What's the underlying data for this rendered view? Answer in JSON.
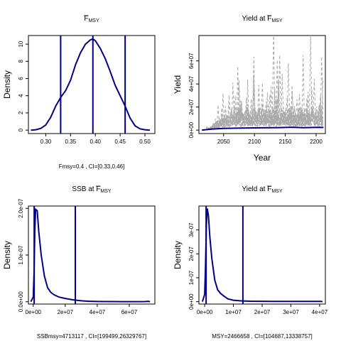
{
  "chart_data": [
    {
      "type": "line",
      "title": "F̅MSY",
      "title_main": "F",
      "title_sub": "MSY",
      "xlabel": "",
      "ylabel": "Density",
      "xlim": [
        0.265,
        0.52
      ],
      "ylim": [
        -0.4,
        11.0
      ],
      "xticks": [
        0.3,
        0.35,
        0.4,
        0.45,
        0.5
      ],
      "xtick_labels": [
        "0.30",
        "0.35",
        "0.40",
        "0.45",
        "0.50"
      ],
      "yticks": [
        0,
        2,
        4,
        6,
        8,
        10
      ],
      "ytick_labels": [
        "0",
        "2",
        "4",
        "6",
        "8",
        "10"
      ],
      "series": [
        {
          "x": [
            0.27,
            0.28,
            0.29,
            0.3,
            0.31,
            0.32,
            0.33,
            0.34,
            0.35,
            0.36,
            0.37,
            0.38,
            0.39,
            0.395,
            0.4,
            0.41,
            0.42,
            0.43,
            0.44,
            0.45,
            0.46,
            0.47,
            0.48,
            0.49,
            0.5,
            0.51
          ],
          "y": [
            0.0,
            0.05,
            0.2,
            0.6,
            1.5,
            2.8,
            3.8,
            4.6,
            5.8,
            7.6,
            9.0,
            10.0,
            10.5,
            10.6,
            10.4,
            9.5,
            8.3,
            6.8,
            5.2,
            4.0,
            2.8,
            1.4,
            0.5,
            0.15,
            0.05,
            0.0
          ]
        }
      ],
      "vlines": [
        0.33,
        0.395,
        0.46
      ],
      "caption": "Fmsy=0.4 , CI=[0.33,0.46]"
    },
    {
      "type": "line",
      "title": "Yield at F̅MSY",
      "title_main": "Yield at F",
      "title_sub": "MSY",
      "xlabel": "Year",
      "ylabel": "Yield",
      "xlim": [
        2010,
        2215
      ],
      "ylim": [
        -3000000,
        82000000
      ],
      "xticks": [
        2050,
        2100,
        2150,
        2200
      ],
      "xtick_labels": [
        "2050",
        "2100",
        "2150",
        "2200"
      ],
      "yticks": [
        0,
        20000000,
        40000000,
        60000000
      ],
      "ytick_labels": [
        "0e+00",
        "2e+07",
        "4e+07",
        "6e+07"
      ],
      "median_series": {
        "x": [
          2015,
          2030,
          2050,
          2080,
          2110,
          2140,
          2160,
          2180,
          2200,
          2212
        ],
        "y": [
          0,
          800000,
          1500000,
          1800000,
          2000000,
          2200000,
          2500000,
          2100000,
          2400000,
          2300000
        ]
      },
      "caption": ""
    },
    {
      "type": "line",
      "title": "SSB at F̅MSY",
      "title_main": "SSB at F",
      "title_sub": "MSY",
      "xlabel": "",
      "ylabel": "Density",
      "xlim": [
        -3000000,
        76000000
      ],
      "ylim": [
        -5e-09,
        2.05e-07
      ],
      "xticks": [
        0,
        20000000,
        40000000,
        60000000
      ],
      "xtick_labels": [
        "0e+00",
        "2e+07",
        "4e+07",
        "6e+07"
      ],
      "yticks": [
        0,
        1e-07,
        2e-07
      ],
      "ytick_labels": [
        "0.0e+00",
        "1.0e-07",
        "2.0e-07"
      ],
      "series": [
        {
          "x": [
            -1500000,
            0,
            500000,
            1000000,
            1500000,
            2500000,
            3500000,
            5000000,
            7000000,
            9000000,
            11000000,
            13000000,
            16000000,
            20000000,
            25000000,
            30000000,
            35000000,
            40000000,
            45000000,
            50000000,
            55000000,
            60000000,
            65000000,
            70000000,
            72000000,
            73000000
          ],
          "y": [
            0.0,
            1e-08,
            6e-08,
            1.5e-07,
            1.98e-07,
            1.95e-07,
            1.5e-07,
            1e-07,
            5.5e-08,
            3e-08,
            2e-08,
            1.5e-08,
            1e-08,
            7e-09,
            4e-09,
            2e-09,
            1e-09,
            5e-10,
            4e-10,
            3e-10,
            2e-10,
            2e-10,
            2e-10,
            4e-10,
            1e-09,
            0.0
          ]
        }
      ],
      "vlines": [
        600000,
        26300000
      ],
      "caption": "SSBmsy=4713117 , CI=[199499,26329767]"
    },
    {
      "type": "line",
      "title": "Yield at F̅MSY",
      "title_main": "Yield at F",
      "title_sub": "MSY",
      "xlabel": "",
      "ylabel": "Density",
      "xlim": [
        -2000000,
        42000000
      ],
      "ylim": [
        -1e-08,
        4e-07
      ],
      "xticks": [
        0,
        10000000,
        20000000,
        30000000,
        40000000
      ],
      "xtick_labels": [
        "0e+00",
        "1e+07",
        "2e+07",
        "3e+07",
        "4e+07"
      ],
      "yticks": [
        0,
        1e-07,
        2e-07,
        3e-07
      ],
      "ytick_labels": [
        "0e+00",
        "1e-07",
        "2e-07",
        "3e-07"
      ],
      "series": [
        {
          "x": [
            -800000,
            0,
            300000,
            600000,
            900000,
            1300000,
            1800000,
            2500000,
            3500000,
            4500000,
            5500000,
            6500000,
            8000000,
            10000000,
            13000000,
            16000000,
            20000000,
            25000000,
            30000000,
            35000000,
            39000000,
            40500000,
            41000000
          ],
          "y": [
            0.0,
            3e-08,
            1.5e-07,
            3.2e-07,
            3.9e-07,
            3.6e-07,
            2.7e-07,
            1.8e-07,
            9e-08,
            5e-08,
            3.5e-08,
            2.5e-08,
            1.2e-08,
            6e-09,
            3e-09,
            2e-09,
            1.5e-09,
            1e-09,
            1e-09,
            1e-09,
            1e-09,
            1e-09,
            0.0
          ]
        }
      ],
      "vlines": [
        500000,
        13300000
      ],
      "caption": "MSY=2466658 , CI=[104687,13338757]"
    }
  ],
  "colors": {
    "line": "#00008b",
    "grey": "#a9a9a9",
    "frame": "#000000"
  }
}
